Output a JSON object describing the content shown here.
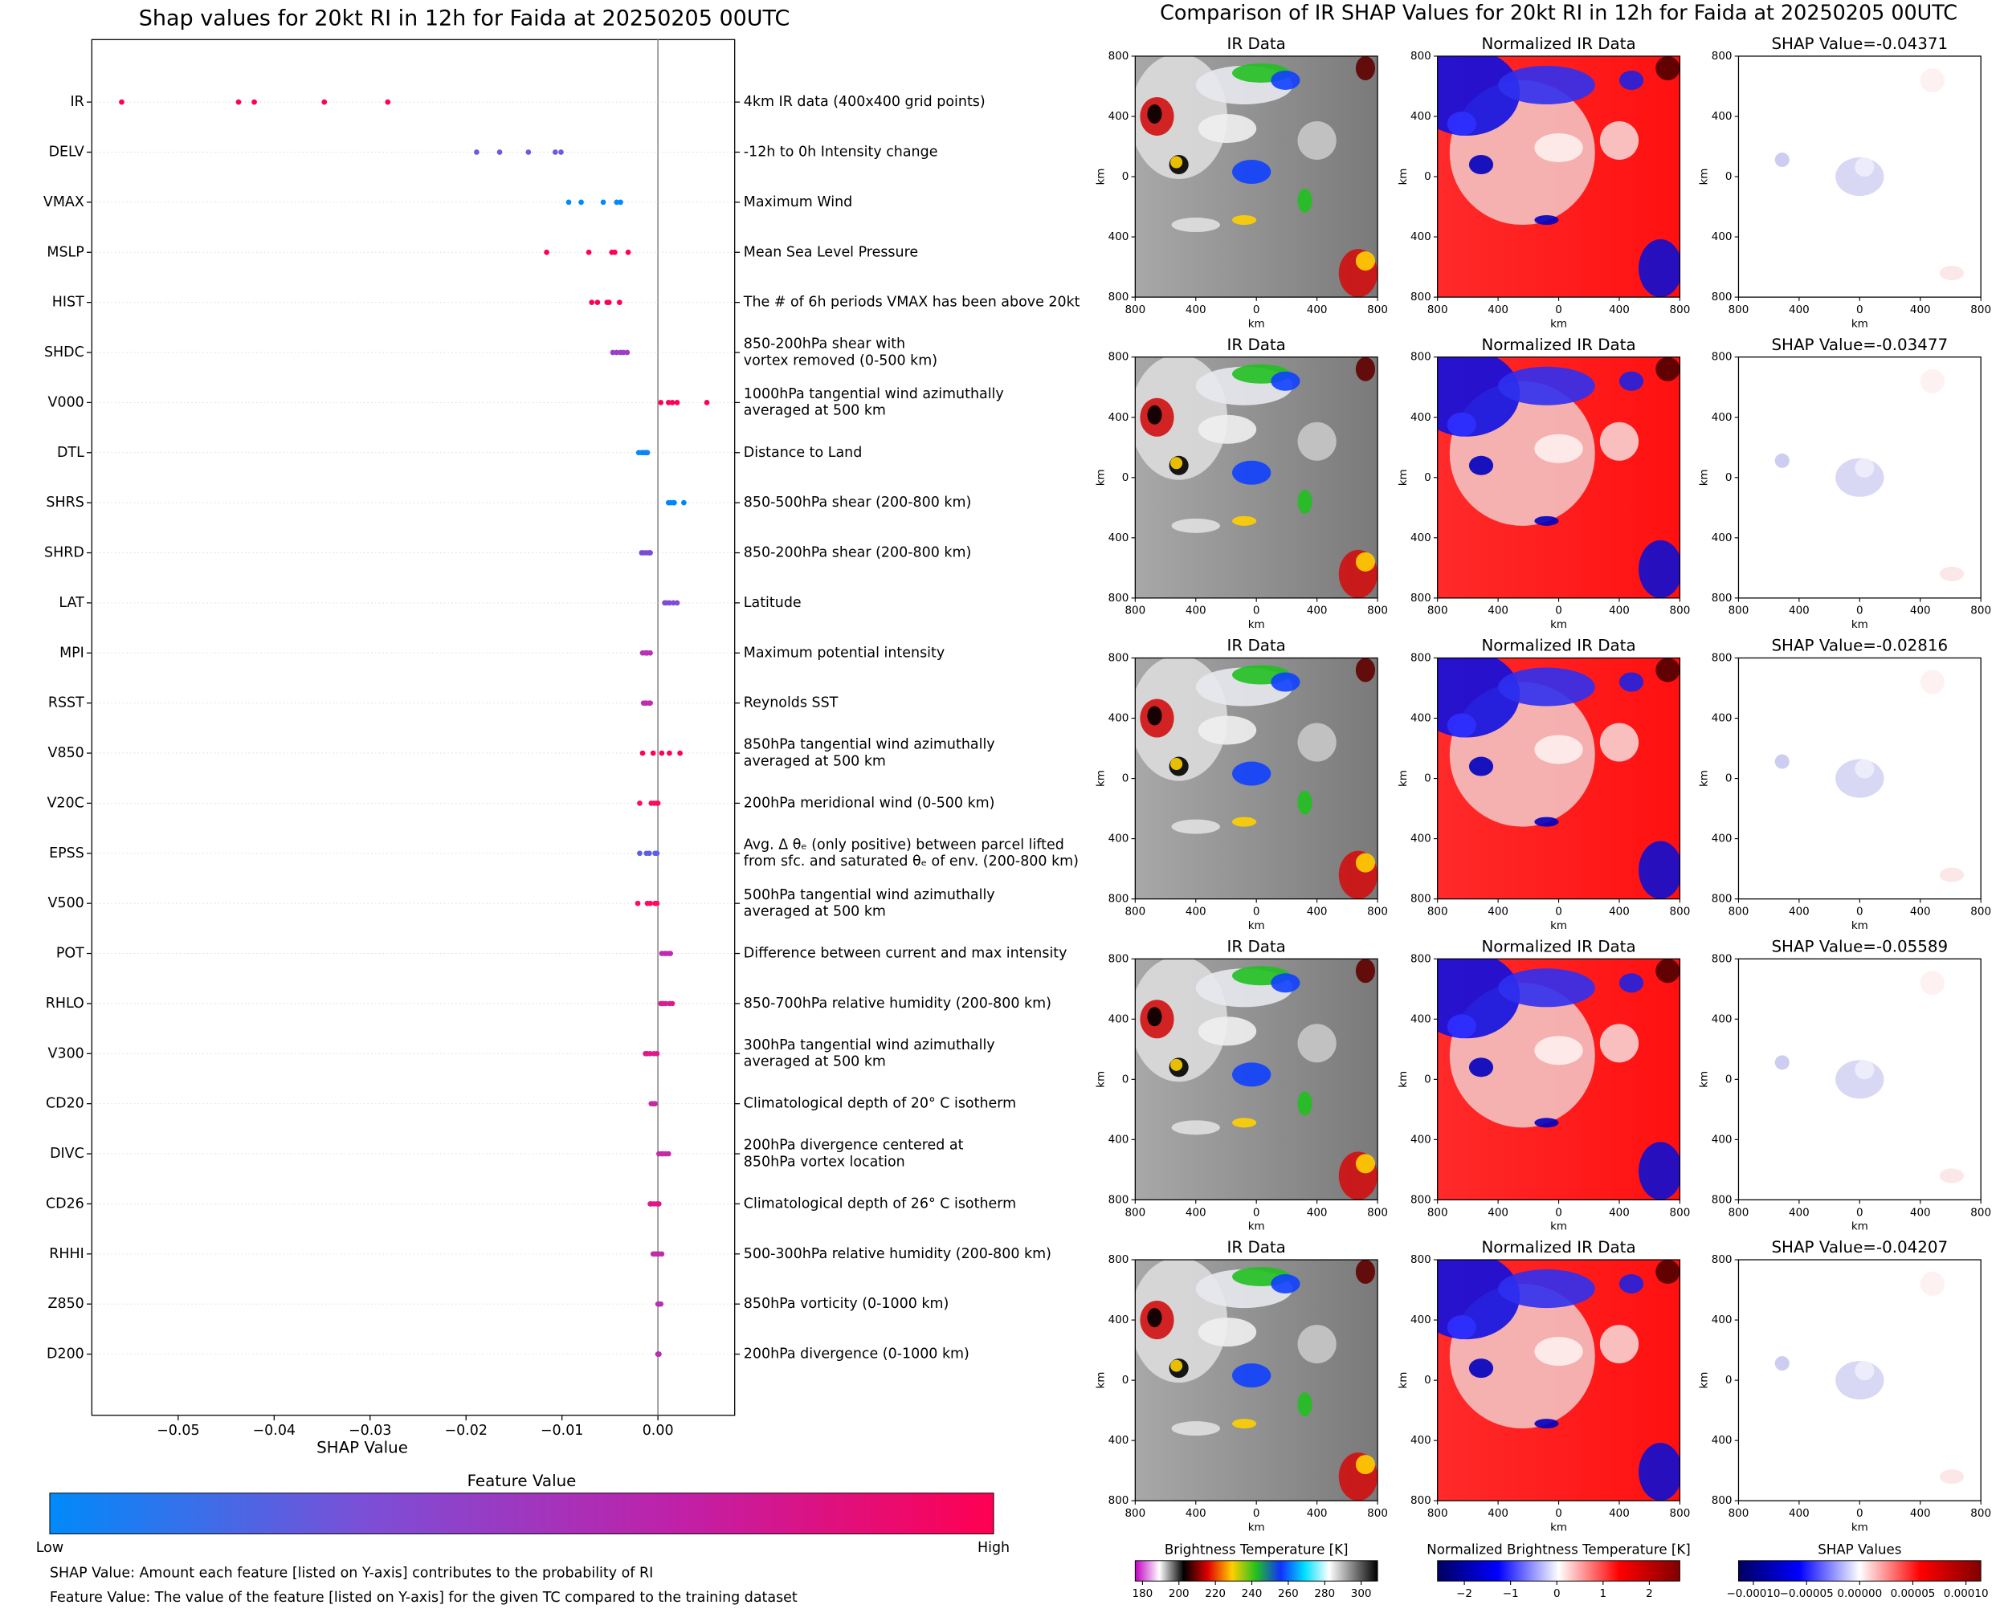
{
  "chart_data": [
    {
      "type": "beeswarm",
      "title": "Shap values for 20kt RI in 12h for Faida at 20250205 00UTC",
      "xlabel": "SHAP Value",
      "xlim": [
        -0.059,
        0.008
      ],
      "xticks": [
        {
          "value": -0.05,
          "label": "−0.05"
        },
        {
          "value": -0.04,
          "label": "−0.04"
        },
        {
          "value": -0.03,
          "label": "−0.03"
        },
        {
          "value": -0.02,
          "label": "−0.02"
        },
        {
          "value": -0.01,
          "label": "−0.01"
        },
        {
          "value": 0,
          "label": "0.00"
        }
      ],
      "series": [
        {
          "name": "IR",
          "description": [
            "4km IR data (400x400 grid points)"
          ],
          "color": "#ff0052",
          "values": [
            -0.05589,
            -0.04371,
            -0.04207,
            -0.03477,
            -0.02816
          ]
        },
        {
          "name": "DELV",
          "description": [
            "-12h to 0h Intensity change"
          ],
          "color": "#6a5ce0",
          "values": [
            -0.0189,
            -0.0165,
            -0.0135,
            -0.0107,
            -0.0101
          ]
        },
        {
          "name": "VMAX",
          "description": [
            "Maximum Wind"
          ],
          "color": "#008afa",
          "values": [
            -0.0093,
            -0.008,
            -0.0057,
            -0.0043,
            -0.0039
          ]
        },
        {
          "name": "MSLP",
          "description": [
            "Mean Sea Level Pressure"
          ],
          "color": "#ff0055",
          "values": [
            -0.0116,
            -0.0072,
            -0.0048,
            -0.0045,
            -0.0031
          ]
        },
        {
          "name": "HIST",
          "description": [
            "The # of 6h periods VMAX has been above 20kt"
          ],
          "color": "#ff0058",
          "values": [
            -0.0069,
            -0.0063,
            -0.0053,
            -0.0051,
            -0.004
          ]
        },
        {
          "name": "SHDC",
          "description": [
            "850-200hPa shear with",
            "vortex removed (0-500 km)"
          ],
          "color": "#9a3ec8",
          "values": [
            -0.0047,
            -0.0043,
            -0.0039,
            -0.0036,
            -0.0032
          ]
        },
        {
          "name": "V000",
          "description": [
            "1000hPa tangential wind azimuthally",
            "averaged at 500 km"
          ],
          "color": "#ff0058",
          "values": [
            0.0003,
            0.0011,
            0.0015,
            0.002,
            0.0051
          ]
        },
        {
          "name": "DTL",
          "description": [
            "Distance to Land"
          ],
          "color": "#0a86f6",
          "values": [
            -0.002,
            -0.0017,
            -0.0015,
            -0.0013,
            -0.0011
          ]
        },
        {
          "name": "SHRS",
          "description": [
            "850-500hPa shear (200-800 km)"
          ],
          "color": "#0088fb",
          "values": [
            0.0011,
            0.0013,
            0.0016,
            0.0017,
            0.0027
          ]
        },
        {
          "name": "SHRD",
          "description": [
            "850-200hPa shear (200-800 km)"
          ],
          "color": "#7a4cd6",
          "values": [
            -0.0017,
            -0.0015,
            -0.0012,
            -0.0009,
            -0.0008
          ]
        },
        {
          "name": "LAT",
          "description": [
            "Latitude"
          ],
          "color": "#7d4dd5",
          "values": [
            0.0007,
            0.0009,
            0.0012,
            0.0016,
            0.002
          ]
        },
        {
          "name": "MPI",
          "description": [
            "Maximum potential intensity"
          ],
          "color": "#b832b4",
          "values": [
            -0.0016,
            -0.0013,
            -0.0012,
            -0.0011,
            -0.0008
          ]
        },
        {
          "name": "RSST",
          "description": [
            "Reynolds SST"
          ],
          "color": "#c02ca9",
          "values": [
            -0.0015,
            -0.0013,
            -0.0012,
            -0.0009,
            -0.0008
          ]
        },
        {
          "name": "V850",
          "description": [
            "850hPa tangential wind azimuthally",
            "averaged at 500 km"
          ],
          "color": "#ff0055",
          "values": [
            -0.0016,
            -0.0005,
            0.0004,
            0.0012,
            0.0023
          ]
        },
        {
          "name": "V20C",
          "description": [
            "200hPa meridional wind (0-500 km)"
          ],
          "color": "#ff0a5f",
          "values": [
            -0.0019,
            -0.0007,
            -0.0004,
            -0.0001,
            0
          ]
        },
        {
          "name": "EPSS",
          "description": [
            "Avg. Δ θₑ (only positive) between parcel lifted",
            "from sfc. and saturated θₑ of env. (200-800 km)"
          ],
          "color": "#5d5fe6",
          "values": [
            -0.0019,
            -0.0012,
            -0.0009,
            -0.0003,
            -0.0001
          ]
        },
        {
          "name": "V500",
          "description": [
            "500hPa tangential wind azimuthally",
            "averaged at 500 km"
          ],
          "color": "#ff0a5f",
          "values": [
            -0.0021,
            -0.0011,
            -0.0008,
            -0.0003,
            -0.0001
          ]
        },
        {
          "name": "POT",
          "description": [
            "Difference between current and max intensity"
          ],
          "color": "#c02aac",
          "values": [
            0.0004,
            0.0007,
            0.0009,
            0.0012,
            0.0013
          ]
        },
        {
          "name": "RHLO",
          "description": [
            "850-700hPa relative humidity (200-800 km)"
          ],
          "color": "#d81e8e",
          "values": [
            0.0003,
            0.0005,
            0.0008,
            0.0012,
            0.0015
          ]
        },
        {
          "name": "V300",
          "description": [
            "300hPa tangential wind azimuthally",
            "averaged at 500 km"
          ],
          "color": "#e0188a",
          "values": [
            -0.0013,
            -0.0011,
            -0.0008,
            -0.0004,
            -0.0001
          ]
        },
        {
          "name": "CD20",
          "description": [
            "Climatological depth of 20° C isotherm"
          ],
          "color": "#c929a0",
          "values": [
            -0.0007,
            -0.0005,
            -0.0004,
            -0.0003,
            -0.0003
          ]
        },
        {
          "name": "DIVC",
          "description": [
            "200hPa divergence centered at",
            "850hPa vortex location"
          ],
          "color": "#c52aa5",
          "values": [
            0.0001,
            0.0004,
            0.0005,
            0.0008,
            0.0011
          ]
        },
        {
          "name": "CD26",
          "description": [
            "Climatological depth of 26° C isotherm"
          ],
          "color": "#e0178a",
          "values": [
            -0.0008,
            -0.0007,
            -0.0004,
            -0.0001,
            0.0001
          ]
        },
        {
          "name": "RHHI",
          "description": [
            "500-300hPa relative humidity (200-800 km)"
          ],
          "color": "#c12ba8",
          "values": [
            -0.0005,
            -0.0003,
            -0.0001,
            0.0001,
            0.0004
          ]
        },
        {
          "name": "Z850",
          "description": [
            "850hPa vorticity (0-1000 km)"
          ],
          "color": "#b530b3",
          "values": [
            0,
            0.0001,
            0.0001,
            0.0002,
            0.0003
          ]
        },
        {
          "name": "D200",
          "description": [
            "200hPa divergence (0-1000 km)"
          ],
          "color": "#b530b0",
          "values": [
            0,
            0,
            0.0001,
            0.0001,
            0.0001
          ]
        }
      ],
      "colorbar": {
        "title": "Feature Value",
        "low_label": "Low",
        "high_label": "High",
        "colors": [
          "#008afa",
          "#7b4fd6",
          "#c020a8",
          "#ff0052"
        ]
      },
      "notes": [
        "SHAP Value: Amount each feature [listed on Y-axis] contributes to the probability of RI",
        "Feature Value: The value of the feature [listed on Y-axis] for the given TC compared to the training dataset"
      ]
    },
    {
      "type": "image-grid",
      "title": "Comparison of IR SHAP Values for 20kt RI in 12h for Faida at 20250205 00UTC",
      "axis_label": "km",
      "panel_ticks": [
        {
          "value": -800,
          "label": "800"
        },
        {
          "value": -400,
          "label": "400"
        },
        0,
        400,
        800
      ],
      "columns": [
        {
          "colorbar": {
            "title": "Brightness Temperature [K]",
            "lim": [
              176,
              309
            ],
            "ticks": [
              180,
              200,
              220,
              240,
              260,
              280,
              300
            ],
            "colors": [
              "#c000c0",
              "#ffffff",
              "#000000",
              "#e00000",
              "#ffd000",
              "#20c020",
              "#1030ff",
              "#00e0ff",
              "#ffffff",
              "#808080",
              "#000000"
            ]
          }
        },
        {
          "colorbar": {
            "title": "Normalized Brightness Temperature [K]",
            "lim": [
              -2.58,
              2.66
            ],
            "ticks": [
              {
                "value": -2,
                "label": "−2"
              },
              {
                "value": -1,
                "label": "−1"
              },
              0,
              1,
              2
            ],
            "colors": [
              "#000060",
              "#0000ff",
              "#ffffff",
              "#ff0000",
              "#800000"
            ]
          }
        },
        {
          "colorbar": {
            "title": "SHAP Values",
            "lim": [
              -0.000114,
              0.000114
            ],
            "ticks": [
              {
                "value": -0.0001,
                "label": "−0.00010"
              },
              {
                "value": -5e-05,
                "label": "−0.00005"
              },
              {
                "value": 0,
                "label": "0.00000"
              },
              {
                "value": 5e-05,
                "label": "0.00005"
              },
              {
                "value": 0.0001,
                "label": "0.00010"
              }
            ],
            "colors": [
              "#000060",
              "#0000ff",
              "#ffffff",
              "#ff0000",
              "#800000"
            ]
          }
        }
      ],
      "rows": [
        {
          "titles": [
            "IR Data",
            "Normalized IR Data",
            "SHAP Value=-0.04371"
          ]
        },
        {
          "titles": [
            "IR Data",
            "Normalized IR Data",
            "SHAP Value=-0.03477"
          ]
        },
        {
          "titles": [
            "IR Data",
            "Normalized IR Data",
            "SHAP Value=-0.02816"
          ]
        },
        {
          "titles": [
            "IR Data",
            "Normalized IR Data",
            "SHAP Value=-0.05589"
          ]
        },
        {
          "titles": [
            "IR Data",
            "Normalized IR Data",
            "SHAP Value=-0.04207"
          ]
        }
      ]
    }
  ]
}
